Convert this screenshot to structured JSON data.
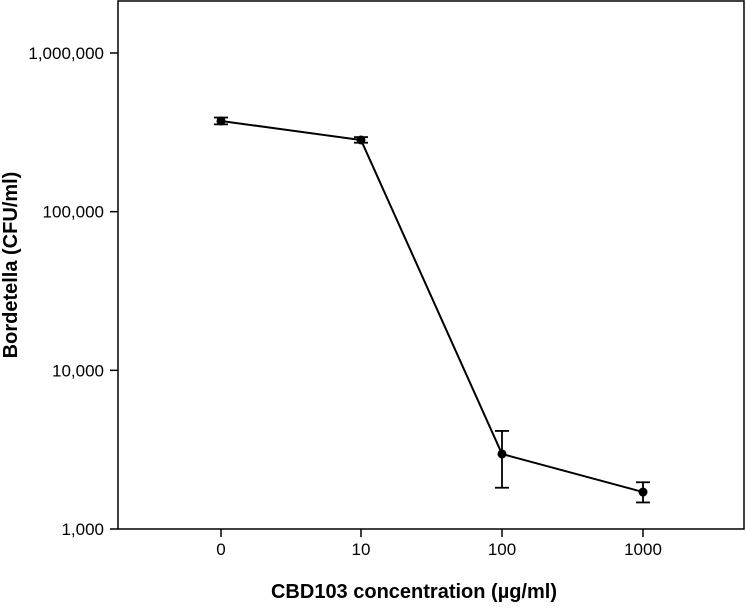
{
  "chart_data": {
    "type": "line",
    "title": "",
    "xlabel": "CBD103 concentration (µg/ml)",
    "ylabel": "Bordetella (CFU/ml)",
    "yscale": "log",
    "ylim": [
      1000,
      1000000
    ],
    "grid": false,
    "categories": [
      "0",
      "10",
      "100",
      "1000"
    ],
    "y_ticks": [
      {
        "value": 1000,
        "label": "1,000"
      },
      {
        "value": 10000,
        "label": "10,000"
      },
      {
        "value": 100000,
        "label": "100,000"
      },
      {
        "value": 1000000,
        "label": "1,000,000"
      }
    ],
    "series": [
      {
        "name": "Bordetella",
        "values": [
          373000,
          283000,
          2970,
          1710
        ],
        "error_low": [
          355000,
          272000,
          1820,
          1470
        ],
        "error_high": [
          392000,
          295000,
          4150,
          1970
        ]
      }
    ],
    "colors": {
      "line": "#000000",
      "marker": "#000000"
    }
  }
}
